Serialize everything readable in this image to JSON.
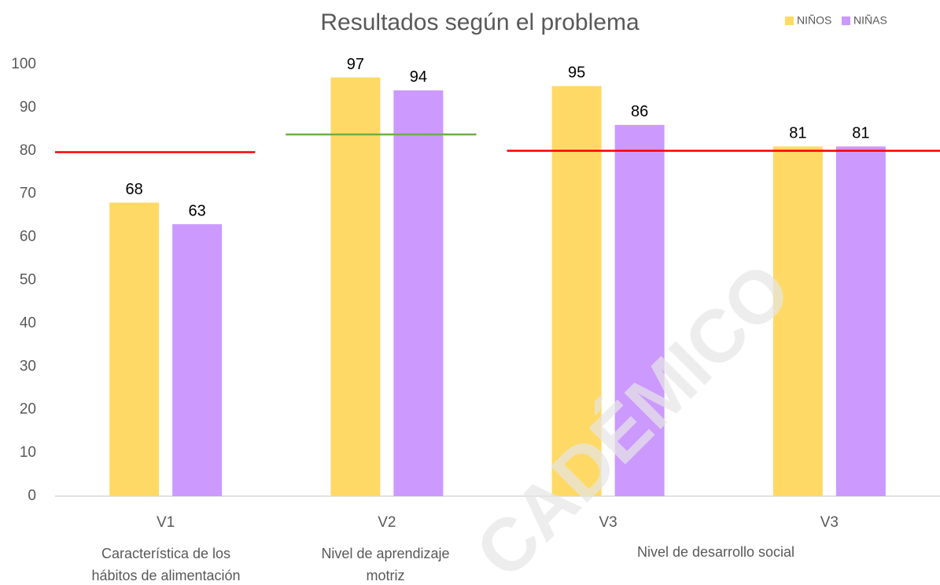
{
  "chart_data": {
    "type": "bar",
    "title": "Resultados según el problema",
    "categories": [
      "V1",
      "V2",
      "V3",
      "V3"
    ],
    "category_descriptions": [
      [
        "Característica de los",
        "hábitos de alimentación"
      ],
      [
        "Nivel de aprendizaje",
        "motriz"
      ],
      [
        "Nivel de desarrollo social"
      ]
    ],
    "series": [
      {
        "name": "NIÑOS",
        "color": "#ffd966",
        "values": [
          68,
          97,
          95,
          81
        ]
      },
      {
        "name": "NIÑAS",
        "color": "#cc99ff",
        "values": [
          63,
          94,
          86,
          81
        ]
      }
    ],
    "reference_lines": [
      {
        "value": 79.7,
        "color": "#ff0000",
        "span": [
          0,
          0
        ]
      },
      {
        "value": 83.8,
        "color": "#70ad47",
        "span": [
          1,
          1
        ]
      },
      {
        "value": 80,
        "color": "#ff0000",
        "span": [
          2,
          3
        ]
      }
    ],
    "ylim": [
      0,
      100
    ],
    "yticks": [
      0,
      10,
      20,
      30,
      40,
      50,
      60,
      70,
      80,
      90,
      100
    ],
    "grid": false,
    "legend": "top-right",
    "watermark": "CADÉMICO"
  }
}
